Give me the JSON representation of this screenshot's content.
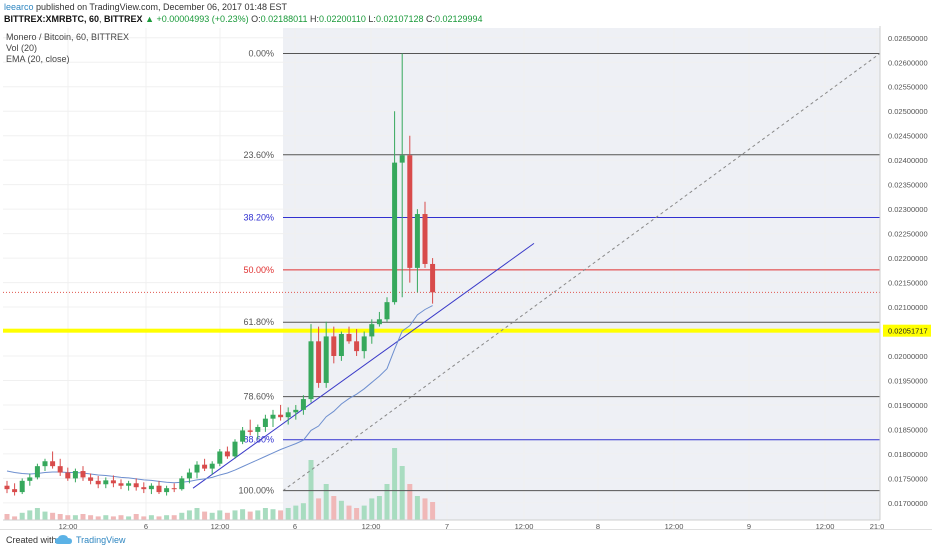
{
  "header": {
    "author": "leearco",
    "published": "published on TradingView.com, December 06, 2017 01:48 EST",
    "symbol": "BITTREX:XMRBTC, 60",
    "exchange": "BITTREX",
    "change_arrow": "▲",
    "change": "+0.00004993 (+0.23%)",
    "o_label": "O:",
    "o_value": "0.02188011",
    "h_label": "H:",
    "h_value": "0.02200110",
    "l_label": "L:",
    "l_value": "0.02107128",
    "c_label": "C:",
    "c_value": "0.02129994",
    "last_price": "0.02129994"
  },
  "legend": {
    "title": "Monero / Bitcoin, 60, BITTREX",
    "vol": "Vol (20)",
    "ema": "EMA (20, close)"
  },
  "footer": {
    "created_with": "Created with",
    "brand": "TradingView"
  },
  "chart_data": {
    "type": "candlestick",
    "title": "Monero / Bitcoin, 60, BITTREX",
    "ylim": [
      0.01665,
      0.0267
    ],
    "y_ticks": [
      "0.02650000",
      "0.02600000",
      "0.02550000",
      "0.02500000",
      "0.02450000",
      "0.02400000",
      "0.02350000",
      "0.02300000",
      "0.02250000",
      "0.02200000",
      "0.02150000",
      "0.02100000",
      "0.02000000",
      "0.01950000",
      "0.01900000",
      "0.01850000",
      "0.01800000",
      "0.01750000",
      "0.01700000"
    ],
    "x_ticks": [
      "12:00",
      "6",
      "12:00",
      "6",
      "12:00",
      "7",
      "12:00",
      "8",
      "12:00",
      "9",
      "12:00",
      "21:0"
    ],
    "highlight_price": {
      "value": 0.02051717,
      "label": "0.02051717",
      "color": "#ffff00"
    },
    "last_close": {
      "value": 0.02129994,
      "color": "#e0574f"
    },
    "fib": {
      "levels": [
        {
          "label": "0.00%",
          "value": 0.02618,
          "color": "#555555"
        },
        {
          "label": "23.60%",
          "value": 0.02411,
          "color": "#555555"
        },
        {
          "label": "38.20%",
          "value": 0.02283,
          "color": "#3030d0"
        },
        {
          "label": "50.00%",
          "value": 0.02176,
          "color": "#e03030"
        },
        {
          "label": "61.80%",
          "value": 0.02069,
          "color": "#555555"
        },
        {
          "label": "78.60%",
          "value": 0.01917,
          "color": "#555555"
        },
        {
          "label": "88.60%",
          "value": 0.01829,
          "color": "#3030d0"
        },
        {
          "label": "100.00%",
          "value": 0.01725,
          "color": "#555555"
        }
      ],
      "colors": {
        "candle_up": "#36a85c",
        "candle_down": "#d84b4b",
        "ema": "#6e8fcf",
        "trendline": "#3a3ac8",
        "vol_up": "#a8dcc0",
        "vol_down": "#f0b8b8",
        "highlight_band": "#eef0f5"
      }
    },
    "candles": [
      {
        "o": 0.01735,
        "h": 0.01745,
        "l": 0.0172,
        "c": 0.01728
      },
      {
        "o": 0.01728,
        "h": 0.0174,
        "l": 0.01715,
        "c": 0.01722
      },
      {
        "o": 0.01722,
        "h": 0.0175,
        "l": 0.01718,
        "c": 0.01745
      },
      {
        "o": 0.01745,
        "h": 0.0176,
        "l": 0.01735,
        "c": 0.01752
      },
      {
        "o": 0.01752,
        "h": 0.0178,
        "l": 0.01748,
        "c": 0.01775
      },
      {
        "o": 0.01775,
        "h": 0.0179,
        "l": 0.01765,
        "c": 0.01785
      },
      {
        "o": 0.01785,
        "h": 0.01805,
        "l": 0.0177,
        "c": 0.01775
      },
      {
        "o": 0.01775,
        "h": 0.0179,
        "l": 0.01755,
        "c": 0.01762
      },
      {
        "o": 0.01762,
        "h": 0.01772,
        "l": 0.01745,
        "c": 0.0175
      },
      {
        "o": 0.0175,
        "h": 0.0177,
        "l": 0.01742,
        "c": 0.01765
      },
      {
        "o": 0.01765,
        "h": 0.01775,
        "l": 0.01745,
        "c": 0.01752
      },
      {
        "o": 0.01752,
        "h": 0.0176,
        "l": 0.01738,
        "c": 0.01745
      },
      {
        "o": 0.01745,
        "h": 0.01755,
        "l": 0.0173,
        "c": 0.01738
      },
      {
        "o": 0.01738,
        "h": 0.01752,
        "l": 0.0173,
        "c": 0.01746
      },
      {
        "o": 0.01746,
        "h": 0.01756,
        "l": 0.01732,
        "c": 0.0174
      },
      {
        "o": 0.0174,
        "h": 0.01748,
        "l": 0.01728,
        "c": 0.01735
      },
      {
        "o": 0.01735,
        "h": 0.01745,
        "l": 0.01725,
        "c": 0.0174
      },
      {
        "o": 0.0174,
        "h": 0.0175,
        "l": 0.01725,
        "c": 0.01732
      },
      {
        "o": 0.01732,
        "h": 0.01742,
        "l": 0.0172,
        "c": 0.01728
      },
      {
        "o": 0.01728,
        "h": 0.0174,
        "l": 0.01718,
        "c": 0.01735
      },
      {
        "o": 0.01735,
        "h": 0.01745,
        "l": 0.01718,
        "c": 0.01722
      },
      {
        "o": 0.01722,
        "h": 0.01735,
        "l": 0.01715,
        "c": 0.0173
      },
      {
        "o": 0.0173,
        "h": 0.0174,
        "l": 0.01722,
        "c": 0.01728
      },
      {
        "o": 0.01728,
        "h": 0.01755,
        "l": 0.01725,
        "c": 0.0175
      },
      {
        "o": 0.0175,
        "h": 0.0177,
        "l": 0.0174,
        "c": 0.01762
      },
      {
        "o": 0.01762,
        "h": 0.01785,
        "l": 0.0175,
        "c": 0.01778
      },
      {
        "o": 0.01778,
        "h": 0.0179,
        "l": 0.01765,
        "c": 0.0177
      },
      {
        "o": 0.0177,
        "h": 0.01785,
        "l": 0.01758,
        "c": 0.0178
      },
      {
        "o": 0.0178,
        "h": 0.0181,
        "l": 0.01775,
        "c": 0.01805
      },
      {
        "o": 0.01805,
        "h": 0.01815,
        "l": 0.0179,
        "c": 0.01795
      },
      {
        "o": 0.01795,
        "h": 0.0183,
        "l": 0.0179,
        "c": 0.01825
      },
      {
        "o": 0.01825,
        "h": 0.01855,
        "l": 0.0182,
        "c": 0.01848
      },
      {
        "o": 0.01848,
        "h": 0.0187,
        "l": 0.01838,
        "c": 0.01845
      },
      {
        "o": 0.01845,
        "h": 0.0186,
        "l": 0.0183,
        "c": 0.01855
      },
      {
        "o": 0.01855,
        "h": 0.0188,
        "l": 0.01845,
        "c": 0.01872
      },
      {
        "o": 0.01872,
        "h": 0.0189,
        "l": 0.01855,
        "c": 0.0188
      },
      {
        "o": 0.0188,
        "h": 0.019,
        "l": 0.01868,
        "c": 0.01875
      },
      {
        "o": 0.01875,
        "h": 0.01895,
        "l": 0.0186,
        "c": 0.01885
      },
      {
        "o": 0.01885,
        "h": 0.019,
        "l": 0.0187,
        "c": 0.0189
      },
      {
        "o": 0.0189,
        "h": 0.0192,
        "l": 0.0188,
        "c": 0.01912
      },
      {
        "o": 0.01912,
        "h": 0.02065,
        "l": 0.01905,
        "c": 0.0203
      },
      {
        "o": 0.0203,
        "h": 0.0206,
        "l": 0.01935,
        "c": 0.01945
      },
      {
        "o": 0.01945,
        "h": 0.0207,
        "l": 0.01935,
        "c": 0.0204
      },
      {
        "o": 0.0204,
        "h": 0.0206,
        "l": 0.01985,
        "c": 0.02
      },
      {
        "o": 0.02,
        "h": 0.0205,
        "l": 0.0199,
        "c": 0.02045
      },
      {
        "o": 0.02045,
        "h": 0.0206,
        "l": 0.02025,
        "c": 0.0203
      },
      {
        "o": 0.0203,
        "h": 0.02055,
        "l": 0.02,
        "c": 0.0201
      },
      {
        "o": 0.0201,
        "h": 0.0205,
        "l": 0.01995,
        "c": 0.0204
      },
      {
        "o": 0.0204,
        "h": 0.02075,
        "l": 0.02025,
        "c": 0.02065
      },
      {
        "o": 0.02065,
        "h": 0.0209,
        "l": 0.0206,
        "c": 0.02075
      },
      {
        "o": 0.02075,
        "h": 0.0212,
        "l": 0.0207,
        "c": 0.0211
      },
      {
        "o": 0.0211,
        "h": 0.025,
        "l": 0.02105,
        "c": 0.02395
      },
      {
        "o": 0.02395,
        "h": 0.02618,
        "l": 0.0212,
        "c": 0.0241
      },
      {
        "o": 0.0241,
        "h": 0.0245,
        "l": 0.0215,
        "c": 0.0218
      },
      {
        "o": 0.0218,
        "h": 0.023,
        "l": 0.0213,
        "c": 0.0229
      },
      {
        "o": 0.0229,
        "h": 0.02315,
        "l": 0.0218,
        "c": 0.02188
      },
      {
        "o": 0.02188,
        "h": 0.022,
        "l": 0.02107,
        "c": 0.0213
      }
    ],
    "volumes_rel": [
      0.05,
      0.03,
      0.06,
      0.08,
      0.1,
      0.07,
      0.06,
      0.05,
      0.04,
      0.04,
      0.05,
      0.04,
      0.03,
      0.04,
      0.03,
      0.04,
      0.03,
      0.05,
      0.03,
      0.04,
      0.03,
      0.04,
      0.04,
      0.06,
      0.08,
      0.1,
      0.07,
      0.06,
      0.08,
      0.06,
      0.08,
      0.09,
      0.07,
      0.08,
      0.1,
      0.09,
      0.08,
      0.1,
      0.12,
      0.14,
      0.5,
      0.18,
      0.3,
      0.2,
      0.16,
      0.12,
      0.1,
      0.12,
      0.18,
      0.2,
      0.3,
      0.6,
      0.45,
      0.3,
      0.2,
      0.18,
      0.15
    ],
    "ema": [
      0.01765,
      0.01762,
      0.0176,
      0.01759,
      0.0176,
      0.01762,
      0.01763,
      0.01763,
      0.01762,
      0.01762,
      0.01761,
      0.01759,
      0.01757,
      0.01756,
      0.01754,
      0.01752,
      0.01751,
      0.01749,
      0.01747,
      0.01746,
      0.01744,
      0.01742,
      0.01741,
      0.01742,
      0.01744,
      0.01747,
      0.01749,
      0.01752,
      0.01757,
      0.01761,
      0.01767,
      0.01774,
      0.01781,
      0.01788,
      0.01795,
      0.01802,
      0.01809,
      0.01815,
      0.01821,
      0.01828,
      0.01848,
      0.01857,
      0.01876,
      0.01887,
      0.01902,
      0.01913,
      0.01922,
      0.01933,
      0.01946,
      0.01959,
      0.01974,
      0.02014,
      0.02051,
      0.02062,
      0.02084,
      0.02095,
      0.02103
    ]
  }
}
